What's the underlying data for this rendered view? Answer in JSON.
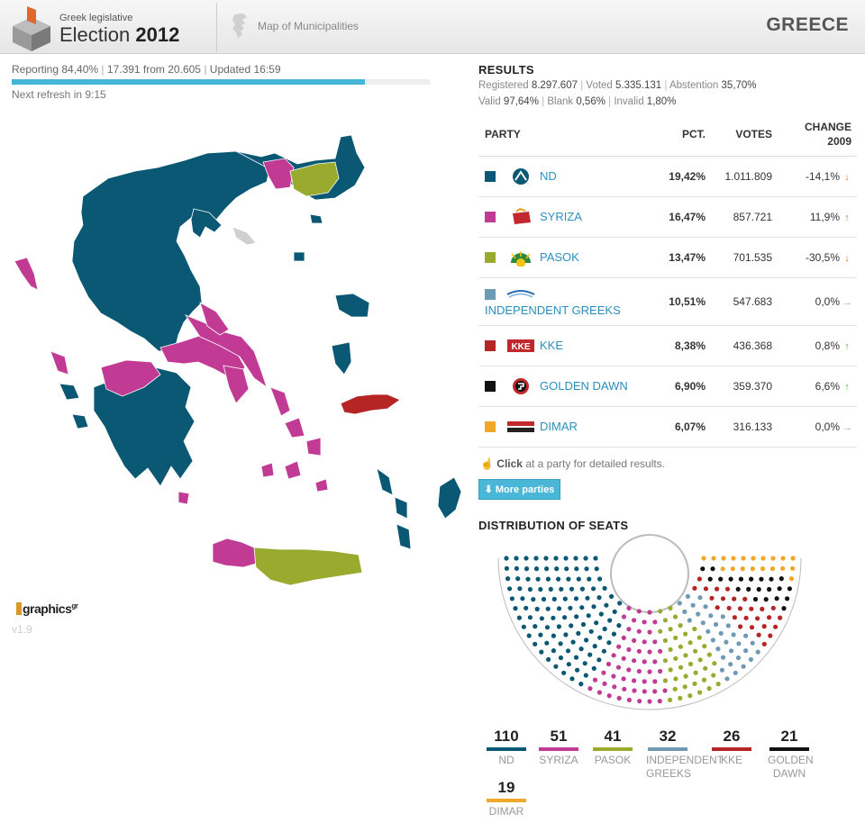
{
  "header": {
    "subtitle": "Greek legislative",
    "title_prefix": "Election",
    "title_year": "2012",
    "map_link": "Map of Municipalities",
    "country": "GREECE"
  },
  "reporting": {
    "pct": "Reporting 84,40%",
    "counted": "17.391 from 20.605",
    "updated": "Updated 16:59",
    "progress_fraction": 0.844,
    "refresh": "Next refresh in 9:15"
  },
  "brand": {
    "name": "graphics",
    "suffix": "gr",
    "version": "v1.9"
  },
  "results": {
    "title": "RESULTS",
    "registered_label": "Registered",
    "registered": "8.297.607",
    "voted_label": "Voted",
    "voted": "5.335.131",
    "abstention_label": "Abstention",
    "abstention": "35,70%",
    "valid_label": "Valid",
    "valid": "97,64%",
    "blank_label": "Blank",
    "blank": "0,56%",
    "invalid_label": "Invalid",
    "invalid": "1,80%",
    "columns": {
      "party": "PARTY",
      "pct": "PCT.",
      "votes": "VOTES",
      "change_line1": "CHANGE",
      "change_line2": "2009"
    },
    "parties": [
      {
        "name": "ND",
        "pct": "19,42%",
        "votes": "1.011.809",
        "change": "-14,1%",
        "trend": "down",
        "color": "#0b5874"
      },
      {
        "name": "SYRIZA",
        "pct": "16,47%",
        "votes": "857.721",
        "change": "11,9%",
        "trend": "up",
        "color": "#c13b95"
      },
      {
        "name": "PASOK",
        "pct": "13,47%",
        "votes": "701.535",
        "change": "-30,5%",
        "trend": "down",
        "color": "#99aa2f"
      },
      {
        "name": "INDEPENDENT GREEKS",
        "pct": "10,51%",
        "votes": "547.683",
        "change": "0,0%",
        "trend": "flat",
        "color": "#6f9ab4"
      },
      {
        "name": "KKE",
        "pct": "8,38%",
        "votes": "436.368",
        "change": "0,8%",
        "trend": "up",
        "color": "#b52525"
      },
      {
        "name": "GOLDEN DAWN",
        "pct": "6,90%",
        "votes": "359.370",
        "change": "6,6%",
        "trend": "up",
        "color": "#111111"
      },
      {
        "name": "DIMAR",
        "pct": "6,07%",
        "votes": "316.133",
        "change": "0,0%",
        "trend": "flat",
        "color": "#f2a72a"
      }
    ],
    "logo_texts": {
      "kke": "ΚΚΕ"
    },
    "hint_bold": "Click",
    "hint_rest": " at a party for detailed results.",
    "more_button": "More parties"
  },
  "seats": {
    "title": "DISTRIBUTION OF SEATS",
    "parties": [
      {
        "label": "ND",
        "seats": 110,
        "color": "#0b5874"
      },
      {
        "label": "SYRIZA",
        "seats": 51,
        "color": "#c13b95"
      },
      {
        "label": "PASOK",
        "seats": 41,
        "color": "#99aa2f"
      },
      {
        "label": "INDEPENDENT GREEKS",
        "seats": 32,
        "color": "#6f9ab4"
      },
      {
        "label": "KKE",
        "seats": 26,
        "color": "#b52525"
      },
      {
        "label": "GOLDEN DAWN",
        "seats": 21,
        "color": "#111111"
      },
      {
        "label": "DIMAR",
        "seats": 19,
        "color": "#f2a72a"
      }
    ]
  },
  "map_colors": {
    "nd": "#0b5874",
    "syriza": "#c13b95",
    "pasok": "#99aa2f",
    "kke": "#b52525",
    "none": "#cfcfcf"
  }
}
